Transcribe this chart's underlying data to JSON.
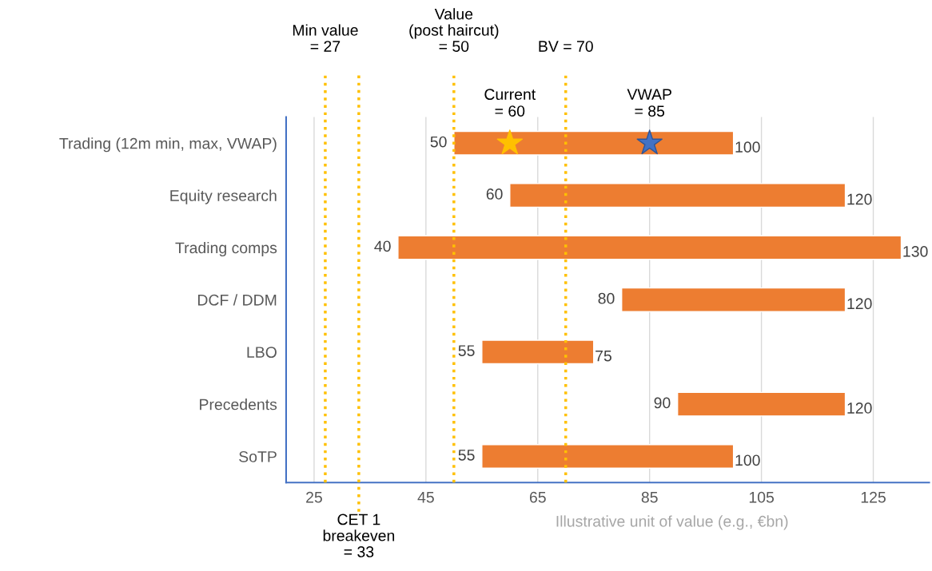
{
  "chart_data": {
    "type": "bar",
    "orientation": "horizontal",
    "categories": [
      "Trading (12m min, max, VWAP)",
      "Equity research",
      "Trading comps",
      "DCF / DDM",
      "LBO",
      "Precedents",
      "SoTP"
    ],
    "series": [
      {
        "color": "#ed7d31",
        "base": [
          50,
          60,
          40,
          80,
          55,
          90,
          55
        ],
        "values": [
          50,
          60,
          90,
          40,
          20,
          30,
          45
        ]
      },
      {
        "type": "scatter",
        "name": "Current\n= 60",
        "color": "#ffc000",
        "marker": "star",
        "values": [
          60,
          null,
          null,
          null,
          null,
          null,
          null
        ]
      },
      {
        "type": "scatter",
        "name": "VWAP\n= 85",
        "color": "#4472c4",
        "marker": "star",
        "values": [
          85,
          null,
          null,
          null,
          null,
          null,
          null
        ]
      }
    ],
    "xlim": [
      20,
      135
    ],
    "xticks": [
      25,
      45,
      65,
      85,
      105,
      125
    ],
    "grid": "x",
    "xlabel": "Illustrative unit of value (e.g., €bn)",
    "ref_lines": [
      {
        "axis": "x",
        "value": 27,
        "label": "Min value\n= 27",
        "color": "#ffc000",
        "line_style": "dotted"
      },
      {
        "axis": "x",
        "value": 33,
        "label": "CET 1\nbreakeven\n= 33",
        "color": "#ffc000",
        "line_style": "dotted"
      },
      {
        "axis": "x",
        "value": 50,
        "label": "Value\n(post haircut)\n= 50",
        "color": "#ffc000",
        "line_style": "dotted"
      },
      {
        "axis": "x",
        "value": 70,
        "label": "BV = 70",
        "color": "#ffc000",
        "line_style": "dotted"
      }
    ],
    "annotations": [
      {
        "text": "50",
        "x": 50,
        "y": "Trading (12m min, max, VWAP)"
      },
      {
        "text": "100",
        "x": 100,
        "y": "Trading (12m min, max, VWAP)"
      },
      {
        "text": "60",
        "x": 60,
        "y": "Equity research"
      },
      {
        "text": "120",
        "x": 120,
        "y": "Equity research"
      },
      {
        "text": "40",
        "x": 40,
        "y": "Trading comps"
      },
      {
        "text": "130",
        "x": 130,
        "y": "Trading comps"
      },
      {
        "text": "80",
        "x": 80,
        "y": "DCF / DDM"
      },
      {
        "text": "120",
        "x": 120,
        "y": "DCF / DDM"
      },
      {
        "text": "55",
        "x": 55,
        "y": "LBO"
      },
      {
        "text": "75",
        "x": 75,
        "y": "LBO"
      },
      {
        "text": "90",
        "x": 90,
        "y": "Precedents"
      },
      {
        "text": "120",
        "x": 120,
        "y": "Precedents"
      },
      {
        "text": "55",
        "x": 55,
        "y": "SoTP"
      },
      {
        "text": "100",
        "x": 100,
        "y": "SoTP"
      }
    ]
  }
}
